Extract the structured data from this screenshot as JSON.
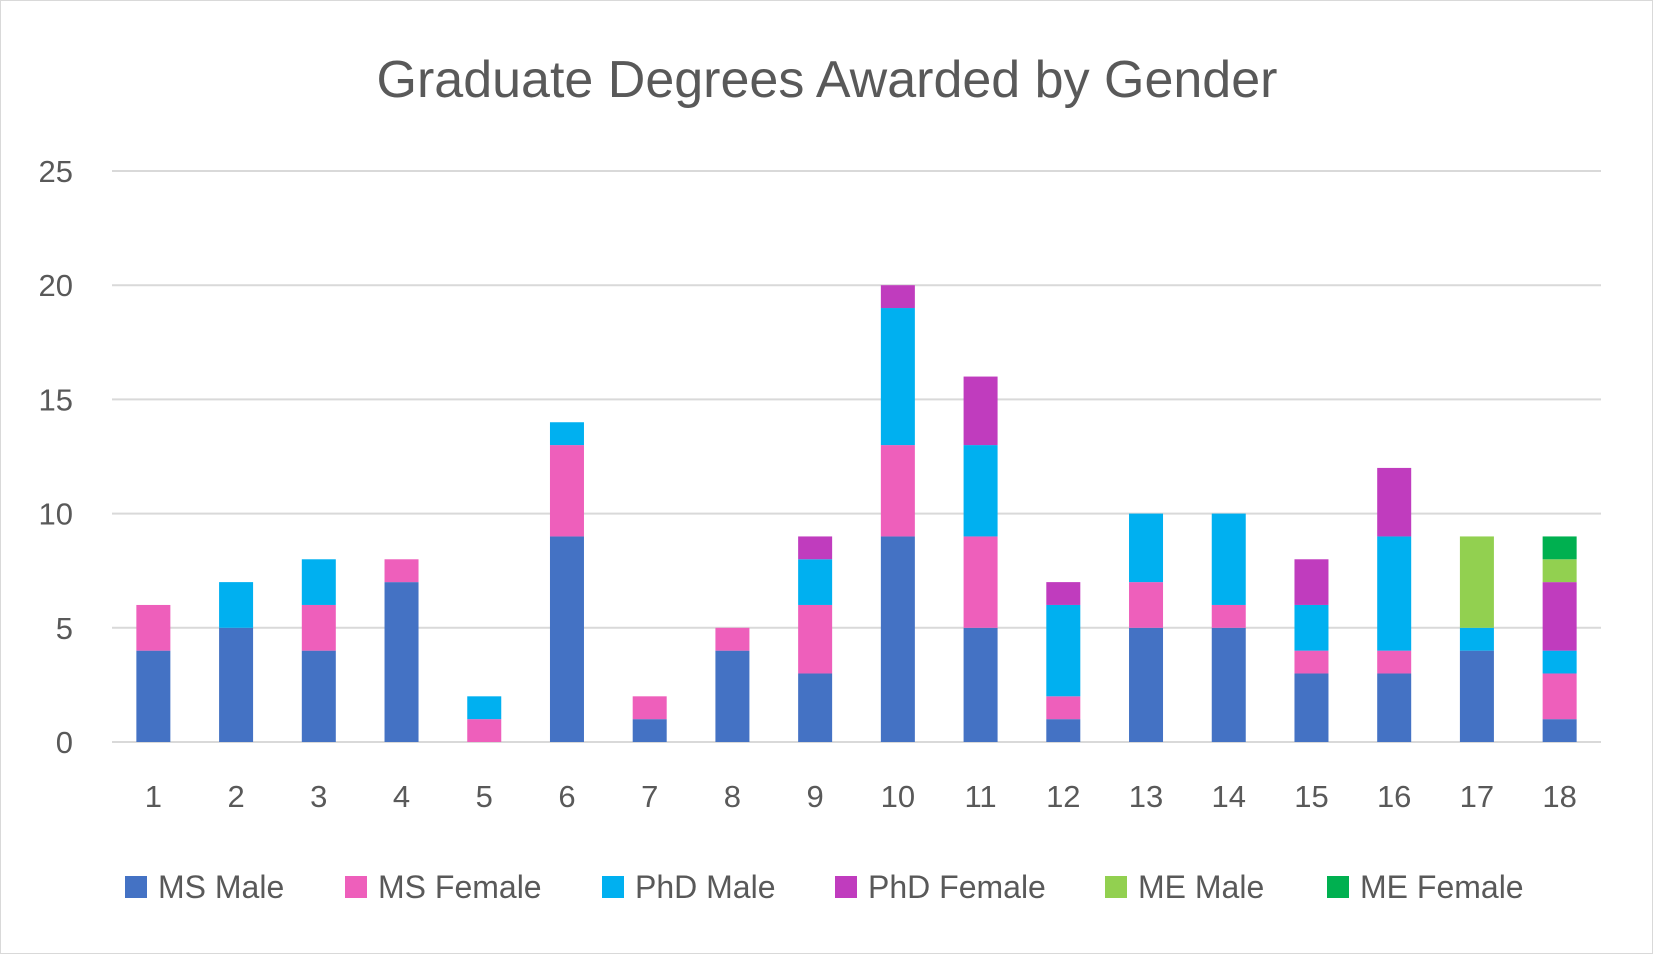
{
  "chart_data": {
    "type": "bar",
    "stacked": true,
    "title": "Graduate Degrees Awarded by Gender",
    "xlabel": "",
    "ylabel": "",
    "ylim": [
      0,
      25
    ],
    "yticks": [
      0,
      5,
      10,
      15,
      20,
      25
    ],
    "grid": true,
    "legend_position": "bottom",
    "categories": [
      "1",
      "2",
      "3",
      "4",
      "5",
      "6",
      "7",
      "8",
      "9",
      "10",
      "11",
      "12",
      "13",
      "14",
      "15",
      "16",
      "17",
      "18"
    ],
    "series": [
      {
        "name": "MS Male",
        "color": "#4472C4",
        "values": [
          4,
          5,
          4,
          7,
          0,
          9,
          1,
          4,
          3,
          9,
          5,
          1,
          5,
          5,
          3,
          3,
          4,
          1
        ]
      },
      {
        "name": "MS Female",
        "color": "#EE5FBB",
        "values": [
          2,
          0,
          2,
          1,
          1,
          4,
          1,
          1,
          3,
          4,
          4,
          1,
          2,
          1,
          1,
          1,
          0,
          2
        ]
      },
      {
        "name": "PhD Male",
        "color": "#00B0F0",
        "values": [
          0,
          2,
          2,
          0,
          1,
          1,
          0,
          0,
          2,
          6,
          4,
          4,
          3,
          4,
          2,
          5,
          1,
          1
        ]
      },
      {
        "name": "PhD Female",
        "color": "#C03CBE",
        "values": [
          0,
          0,
          0,
          0,
          0,
          0,
          0,
          0,
          1,
          1,
          3,
          1,
          0,
          0,
          2,
          3,
          0,
          3
        ]
      },
      {
        "name": "ME Male",
        "color": "#92D050",
        "values": [
          0,
          0,
          0,
          0,
          0,
          0,
          0,
          0,
          0,
          0,
          0,
          0,
          0,
          0,
          0,
          0,
          4,
          1
        ]
      },
      {
        "name": "ME Female",
        "color": "#00B050",
        "values": [
          0,
          0,
          0,
          0,
          0,
          0,
          0,
          0,
          0,
          0,
          0,
          0,
          0,
          0,
          0,
          0,
          0,
          1
        ]
      }
    ]
  }
}
